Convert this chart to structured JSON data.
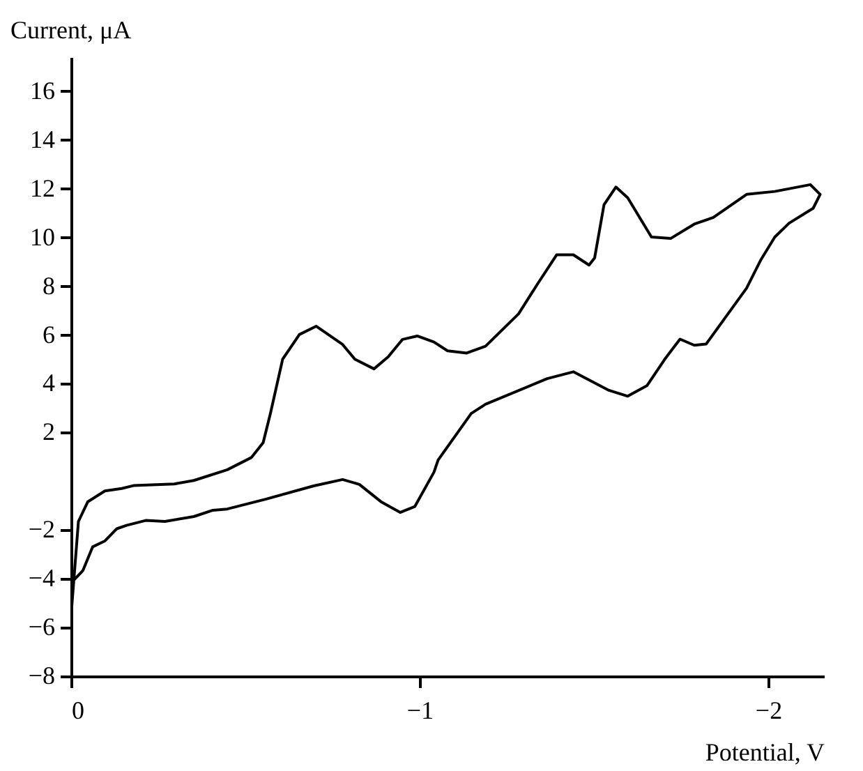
{
  "chart_data": {
    "type": "line",
    "xlabel": "Potential, V",
    "ylabel": "Current, μA",
    "xlim": [
      0,
      -2.16
    ],
    "ylim": [
      -8,
      17.4
    ],
    "xticks": [
      0,
      -1,
      -2
    ],
    "yticks": [
      -8,
      -6,
      -4,
      -2,
      2,
      4,
      6,
      8,
      10,
      12,
      14,
      16
    ],
    "grid": false,
    "line_style": "solid",
    "marker": "none",
    "series": [
      {
        "color": "#000000",
        "x": [
          0,
          -0.021,
          -0.048,
          -0.097,
          -0.145,
          -0.179,
          -0.296,
          -0.352,
          -0.448,
          -0.517,
          -0.551,
          -0.572,
          -0.607,
          -0.655,
          -0.703,
          -0.779,
          -0.814,
          -0.869,
          -0.91,
          -0.951,
          -0.993,
          -1.041,
          -1.08,
          -1.135,
          -1.189,
          -1.284,
          -1.339,
          -1.393,
          -1.441,
          -1.486,
          -1.502,
          -1.529,
          -1.563,
          -1.597,
          -1.665,
          -1.72,
          -1.788,
          -1.842,
          -1.938,
          -2.019,
          -2.121,
          -2.149,
          -2.129,
          -2.06,
          -2.019,
          -1.978,
          -1.938,
          -1.822,
          -1.788,
          -1.747,
          -1.706,
          -1.652,
          -1.597,
          -1.543,
          -1.441,
          -1.366,
          -1.189,
          -1.148,
          -1.053,
          -1.041,
          -0.986,
          -0.944,
          -0.889,
          -0.827,
          -0.779,
          -0.696,
          -0.558,
          -0.448,
          -0.407,
          -0.352,
          -0.269,
          -0.214,
          -0.159,
          -0.131,
          -0.097,
          -0.062,
          -0.034,
          -0.007,
          0
        ],
        "values": [
          -5.5,
          -1.65,
          -0.84,
          -0.4,
          -0.3,
          -0.18,
          -0.11,
          0.03,
          0.47,
          0.97,
          1.58,
          2.79,
          5.01,
          6.02,
          6.36,
          5.61,
          5.01,
          4.61,
          5.11,
          5.82,
          5.96,
          5.71,
          5.35,
          5.26,
          5.54,
          6.87,
          8.11,
          9.29,
          9.29,
          8.87,
          9.16,
          11.35,
          12.07,
          11.63,
          10.02,
          9.96,
          10.55,
          10.82,
          11.77,
          11.89,
          12.17,
          11.77,
          11.2,
          10.59,
          10.02,
          9.06,
          7.92,
          5.63,
          5.58,
          5.83,
          5.06,
          3.92,
          3.49,
          3.73,
          4.49,
          4.21,
          3.16,
          2.78,
          0.87,
          0.37,
          -1.04,
          -1.28,
          -0.84,
          -0.13,
          0.07,
          -0.19,
          -0.74,
          -1.14,
          -1.19,
          -1.45,
          -1.65,
          -1.61,
          -1.81,
          -1.95,
          -2.45,
          -2.69,
          -3.66,
          -4.07,
          -4.3
        ]
      }
    ]
  }
}
